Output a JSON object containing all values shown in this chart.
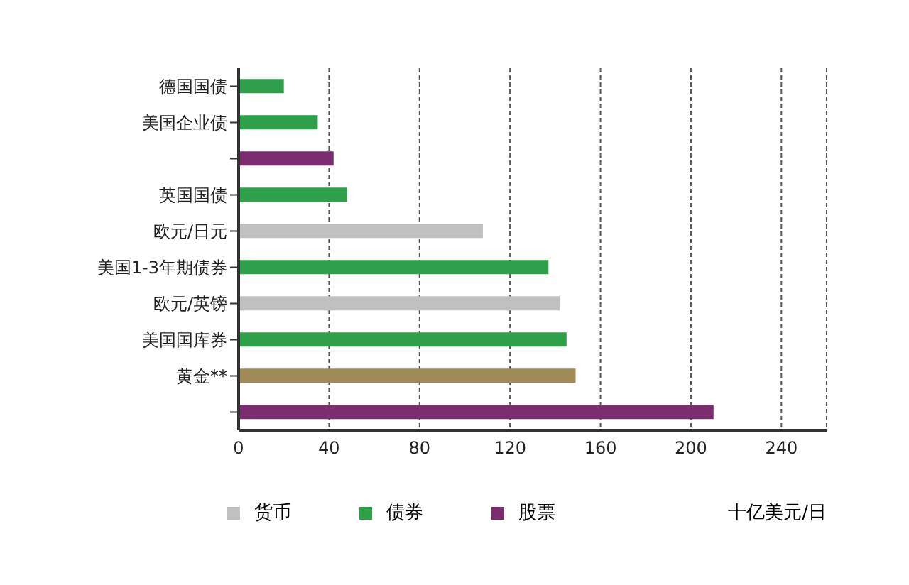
{
  "chart_data": {
    "type": "bar",
    "orientation": "horizontal",
    "stacked": true,
    "categories": [
      "德国国债",
      "美国企业债",
      null,
      "英国国债",
      "欧元/日元",
      "美国1-3年期债券",
      "欧元/英镑",
      "美国国库券",
      "黄金**",
      null
    ],
    "series": [
      {
        "name": "货币",
        "color": "#c0c0c0",
        "values": [
          null,
          null,
          null,
          null,
          108,
          null,
          142,
          null,
          null,
          null
        ]
      },
      {
        "name": "债券",
        "color": "#2ea04a",
        "values": [
          20,
          35,
          null,
          48,
          null,
          137,
          null,
          145,
          null,
          null
        ]
      },
      {
        "name": "股票",
        "color": "#7b2d6f",
        "values": [
          null,
          null,
          42,
          null,
          null,
          null,
          null,
          null,
          null,
          210
        ]
      },
      {
        "color": "#a08a55",
        "values": [
          null,
          null,
          null,
          null,
          null,
          null,
          null,
          null,
          149,
          null
        ]
      }
    ],
    "xlim": [
      0,
      260
    ],
    "xticks": [
      0,
      40,
      80,
      120,
      160,
      200,
      240
    ],
    "grid": "x",
    "legend": "bottom",
    "xlabel": "十亿美元/日"
  }
}
